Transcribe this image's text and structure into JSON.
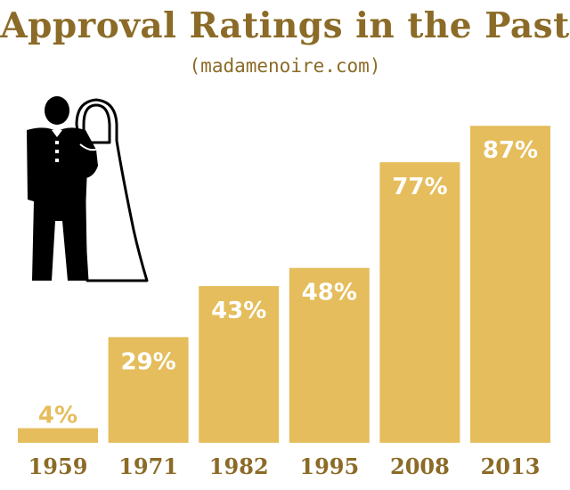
{
  "header": {
    "title": "Approval Ratings in the Past",
    "subtitle": "(madamenoire.com)"
  },
  "colors": {
    "bar": "#e5bd5c",
    "text_brown": "#8b6b27",
    "value_on_bar": "#ffffff",
    "value_above_bar": "#e5bd5c",
    "icon": "#000000"
  },
  "icon": {
    "name": "wedding-couple-icon"
  },
  "chart_data": {
    "type": "bar",
    "title": "Approval Ratings in the Past",
    "subtitle": "(madamenoire.com)",
    "categories": [
      "1959",
      "1971",
      "1982",
      "1995",
      "2008",
      "2013"
    ],
    "values": [
      4,
      29,
      43,
      48,
      77,
      87
    ],
    "value_labels": [
      "4%",
      "29%",
      "43%",
      "48%",
      "77%",
      "87%"
    ],
    "xlabel": "",
    "ylabel": "",
    "ylim": [
      0,
      100
    ],
    "grid": false,
    "legend": "none"
  }
}
